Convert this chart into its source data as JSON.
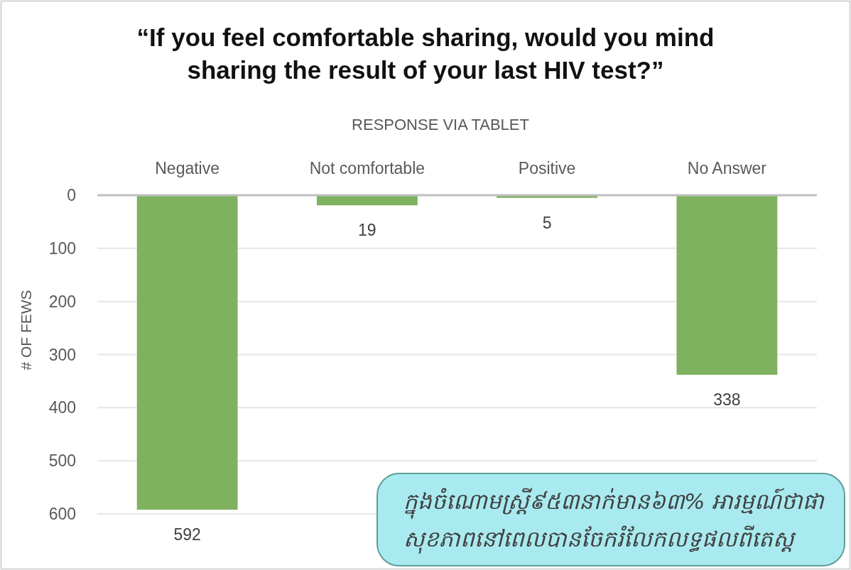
{
  "chart_data": {
    "type": "bar",
    "title": "“If you feel comfortable sharing, would you mind sharing the result of your last HIV test?”",
    "subtitle": "RESPONSE VIA TABLET",
    "ylabel": "# OF FEWS",
    "categories": [
      "Negative",
      "Not comfortable",
      "Positive",
      "No Answer"
    ],
    "values": [
      592,
      19,
      5,
      338
    ],
    "color": "#7eb25e",
    "ylim": [
      600,
      0
    ],
    "yticks": [
      0,
      100,
      200,
      300,
      400,
      500,
      600
    ],
    "grid": "y",
    "data_labels": true,
    "annotations": [
      "ក្នុងចំណោមស្ត្រី៩៥៣នាក់មាន៦៣% អារម្មណ៍ថាផាសុខភាពនៅពេលបានចែករំលែកលទ្ធផលពីតេស្ត"
    ]
  }
}
